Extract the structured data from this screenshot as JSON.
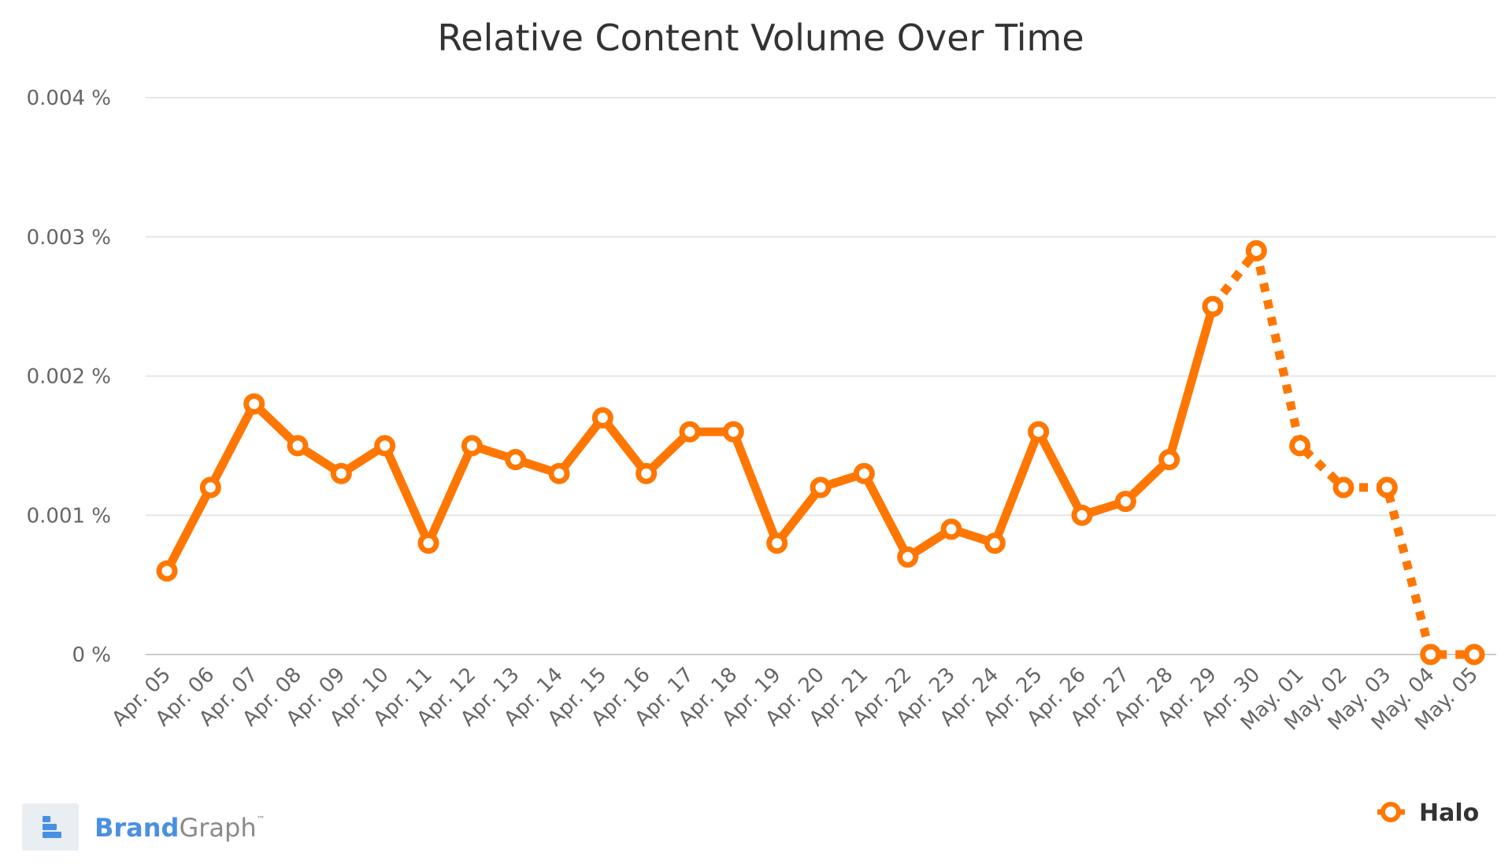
{
  "chart_data": {
    "type": "line",
    "title": "Relative Content Volume Over Time",
    "xlabel": "",
    "ylabel": "",
    "categories": [
      "Apr. 05",
      "Apr. 06",
      "Apr. 07",
      "Apr. 08",
      "Apr. 09",
      "Apr. 10",
      "Apr. 11",
      "Apr. 12",
      "Apr. 13",
      "Apr. 14",
      "Apr. 15",
      "Apr. 16",
      "Apr. 17",
      "Apr. 18",
      "Apr. 19",
      "Apr. 20",
      "Apr. 21",
      "Apr. 22",
      "Apr. 23",
      "Apr. 24",
      "Apr. 25",
      "Apr. 26",
      "Apr. 27",
      "Apr. 28",
      "Apr. 29",
      "Apr. 30",
      "May. 01",
      "May. 02",
      "May. 03",
      "May. 04",
      "May. 05"
    ],
    "series": [
      {
        "name": "Halo",
        "values": [
          0.0006,
          0.0012,
          0.0018,
          0.0015,
          0.0013,
          0.0015,
          0.0008,
          0.0015,
          0.0014,
          0.0013,
          0.0017,
          0.0013,
          0.0016,
          0.0016,
          0.0008,
          0.0012,
          0.0013,
          0.0007,
          0.0009,
          0.0008,
          0.0016,
          0.001,
          0.0011,
          0.0014,
          0.0025,
          0.0029,
          0.0015,
          0.0012,
          0.0012,
          0,
          0
        ],
        "solid_until_index": 24
      }
    ],
    "ylim": [
      0,
      0.004
    ],
    "yticks": [
      0,
      0.001,
      0.002,
      0.003,
      0.004
    ],
    "ytick_labels": [
      "0 %",
      "0.001 %",
      "0.002 %",
      "0.003 %",
      "0.004 %"
    ],
    "grid": true,
    "legend_position": "bottom-right",
    "colors": {
      "series": "#ff7700",
      "grid": "#e6e6e6",
      "marker_fill": "#ffffff"
    }
  },
  "branding": {
    "name_part1": "Brand",
    "name_part2": "Graph",
    "trademark": "™",
    "logo_icon": "bar-chart-stack-icon",
    "colors": {
      "part1": "#4a90e2",
      "part2": "#8a8a8a",
      "badge": "#e9eef3"
    }
  }
}
